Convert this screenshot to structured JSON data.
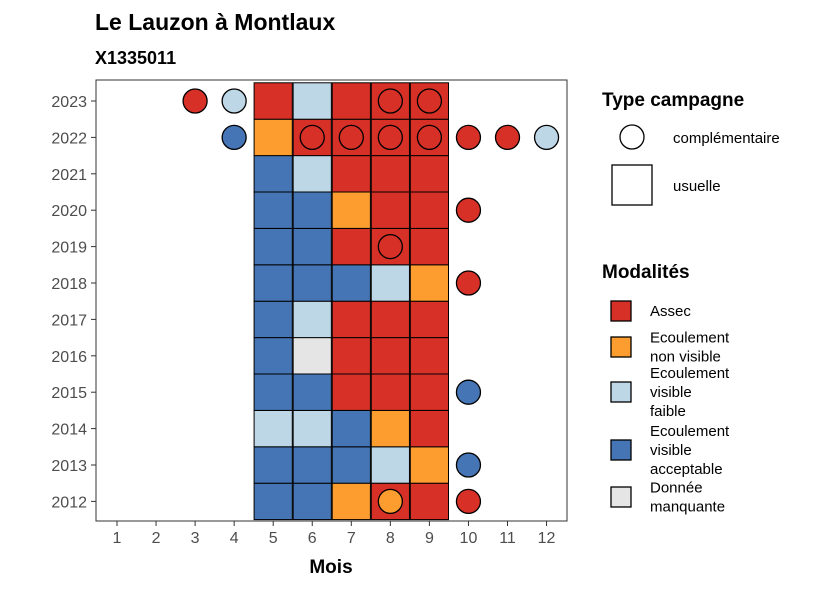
{
  "chart_data": {
    "type": "heatmap",
    "title": "Le Lauzon à Montlaux",
    "subtitle": "X1335011",
    "xlabel": "Mois",
    "ylabel": "",
    "x_ticks": [
      1,
      2,
      3,
      4,
      5,
      6,
      7,
      8,
      9,
      10,
      11,
      12
    ],
    "y_ticks": [
      2012,
      2013,
      2014,
      2015,
      2016,
      2017,
      2018,
      2019,
      2020,
      2021,
      2022,
      2023
    ],
    "legend_modalites_title": "Modalités",
    "legend_type_title": "Type campagne",
    "modalites": [
      {
        "key": "A",
        "label": [
          "Assec"
        ],
        "color": "#d73027"
      },
      {
        "key": "NV",
        "label": [
          "Ecoulement",
          "non visible"
        ],
        "color": "#fd9d30"
      },
      {
        "key": "VF",
        "label": [
          "Ecoulement",
          "visible",
          "faible"
        ],
        "color": "#bdd7e7"
      },
      {
        "key": "VA",
        "label": [
          "Ecoulement",
          "visible",
          "acceptable"
        ],
        "color": "#4575b4"
      },
      {
        "key": "DM",
        "label": [
          "Donnée",
          "manquante"
        ],
        "color": "#e5e5e5"
      }
    ],
    "campaign_types": [
      {
        "key": "complementaire",
        "label": "complémentaire",
        "shape": "circle"
      },
      {
        "key": "usuelle",
        "label": "usuelle",
        "shape": "square"
      }
    ],
    "usuelle": {
      "2012": [
        "VA",
        "VA",
        "NV",
        "A",
        "A"
      ],
      "2013": [
        "VA",
        "VA",
        "VA",
        "VF",
        "NV"
      ],
      "2014": [
        "VF",
        "VF",
        "VA",
        "NV",
        "A"
      ],
      "2015": [
        "VA",
        "VA",
        "A",
        "A",
        "A"
      ],
      "2016": [
        "VA",
        "DM",
        "A",
        "A",
        "A"
      ],
      "2017": [
        "VA",
        "VF",
        "A",
        "A",
        "A"
      ],
      "2018": [
        "VA",
        "VA",
        "VA",
        "VF",
        "NV"
      ],
      "2019": [
        "VA",
        "VA",
        "A",
        "A",
        "A"
      ],
      "2020": [
        "VA",
        "VA",
        "NV",
        "A",
        "A"
      ],
      "2021": [
        "VA",
        "VF",
        "A",
        "A",
        "A"
      ],
      "2022": [
        "NV",
        "A",
        "A",
        "A",
        "A"
      ],
      "2023": [
        "A",
        "VF",
        "A",
        "A",
        "A"
      ]
    },
    "usuelle_months": [
      5,
      6,
      7,
      8,
      9
    ],
    "complementaire": [
      {
        "year": 2023,
        "month": 3,
        "value": "A"
      },
      {
        "year": 2023,
        "month": 4,
        "value": "VF"
      },
      {
        "year": 2023,
        "month": 8,
        "value": "A"
      },
      {
        "year": 2023,
        "month": 9,
        "value": "A"
      },
      {
        "year": 2022,
        "month": 4,
        "value": "VA"
      },
      {
        "year": 2022,
        "month": 6,
        "value": "A"
      },
      {
        "year": 2022,
        "month": 7,
        "value": "A"
      },
      {
        "year": 2022,
        "month": 8,
        "value": "A"
      },
      {
        "year": 2022,
        "month": 9,
        "value": "A"
      },
      {
        "year": 2022,
        "month": 10,
        "value": "A"
      },
      {
        "year": 2022,
        "month": 11,
        "value": "A"
      },
      {
        "year": 2022,
        "month": 12,
        "value": "VF"
      },
      {
        "year": 2020,
        "month": 10,
        "value": "A"
      },
      {
        "year": 2019,
        "month": 8,
        "value": "A"
      },
      {
        "year": 2018,
        "month": 10,
        "value": "A"
      },
      {
        "year": 2015,
        "month": 10,
        "value": "VA"
      },
      {
        "year": 2013,
        "month": 10,
        "value": "VA"
      },
      {
        "year": 2012,
        "month": 8,
        "value": "NV"
      },
      {
        "year": 2012,
        "month": 10,
        "value": "A"
      }
    ],
    "grid": false,
    "legend_position": "right"
  }
}
